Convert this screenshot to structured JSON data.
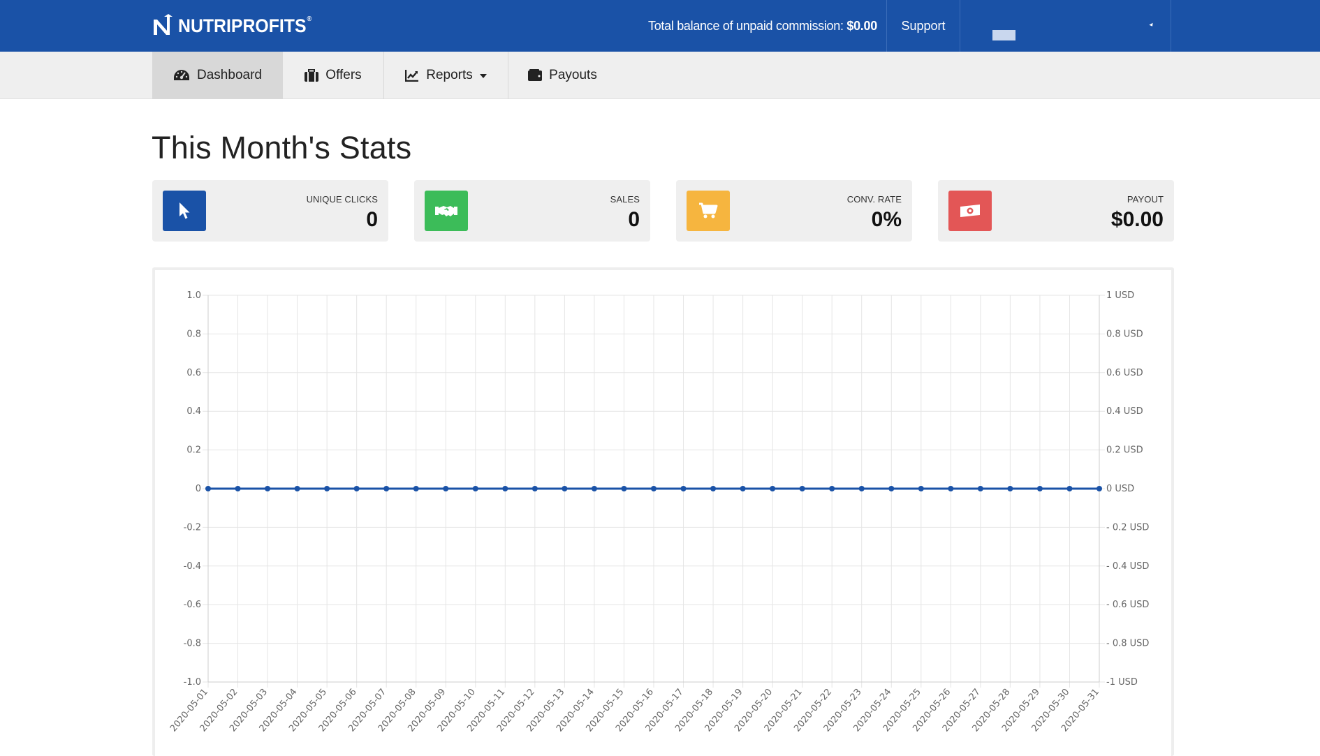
{
  "header": {
    "brand": "NUTRIPROFITS",
    "brand_reg": "®",
    "balance_label": "Total balance of unpaid commission:",
    "balance_value": "$0.00",
    "support_label": "Support",
    "accent_color": "#1a52a7"
  },
  "nav": {
    "items": [
      {
        "label": "Dashboard",
        "icon": "dashboard-icon",
        "active": true
      },
      {
        "label": "Offers",
        "icon": "briefcase-icon"
      },
      {
        "label": "Reports",
        "icon": "chart-line-icon",
        "dropdown": true
      },
      {
        "label": "Payouts",
        "icon": "wallet-icon"
      }
    ]
  },
  "page": {
    "title": "This Month's Stats"
  },
  "stats": [
    {
      "label": "UNIQUE CLICKS",
      "value": "0",
      "icon": "cursor-icon",
      "color": "#1a52a7"
    },
    {
      "label": "SALES",
      "value": "0",
      "icon": "handshake-icon",
      "color": "#3cbc59"
    },
    {
      "label": "CONV. RATE",
      "value": "0%",
      "icon": "cart-icon",
      "color": "#f6b53f"
    },
    {
      "label": "PAYOUT",
      "value": "$0.00",
      "icon": "money-bill-icon",
      "color": "#e35656"
    }
  ],
  "chart_data": {
    "type": "line",
    "x": [
      "2020-05-01",
      "2020-05-02",
      "2020-05-03",
      "2020-05-04",
      "2020-05-05",
      "2020-05-06",
      "2020-05-07",
      "2020-05-08",
      "2020-05-09",
      "2020-05-10",
      "2020-05-11",
      "2020-05-12",
      "2020-05-13",
      "2020-05-14",
      "2020-05-15",
      "2020-05-16",
      "2020-05-17",
      "2020-05-18",
      "2020-05-19",
      "2020-05-20",
      "2020-05-21",
      "2020-05-22",
      "2020-05-23",
      "2020-05-24",
      "2020-05-25",
      "2020-05-26",
      "2020-05-27",
      "2020-05-28",
      "2020-05-29",
      "2020-05-30",
      "2020-05-31"
    ],
    "series": [
      {
        "values": [
          0,
          0,
          0,
          0,
          0,
          0,
          0,
          0,
          0,
          0,
          0,
          0,
          0,
          0,
          0,
          0,
          0,
          0,
          0,
          0,
          0,
          0,
          0,
          0,
          0,
          0,
          0,
          0,
          0,
          0,
          0
        ],
        "color": "#1a52a7"
      }
    ],
    "ylim": [
      -1.0,
      1.0
    ],
    "y_ticks_left": [
      "1.0",
      "0.8",
      "0.6",
      "0.4",
      "0.2",
      "0",
      "-0.2",
      "-0.4",
      "-0.6",
      "-0.8",
      "-1.0"
    ],
    "y_ticks_right": [
      "1 USD",
      "0.8 USD",
      "0.6 USD",
      "0.4 USD",
      "0.2 USD",
      "0 USD",
      "- 0.2 USD",
      "- 0.4 USD",
      "- 0.6 USD",
      "- 0.8 USD",
      "-1 USD"
    ],
    "grid": true
  }
}
